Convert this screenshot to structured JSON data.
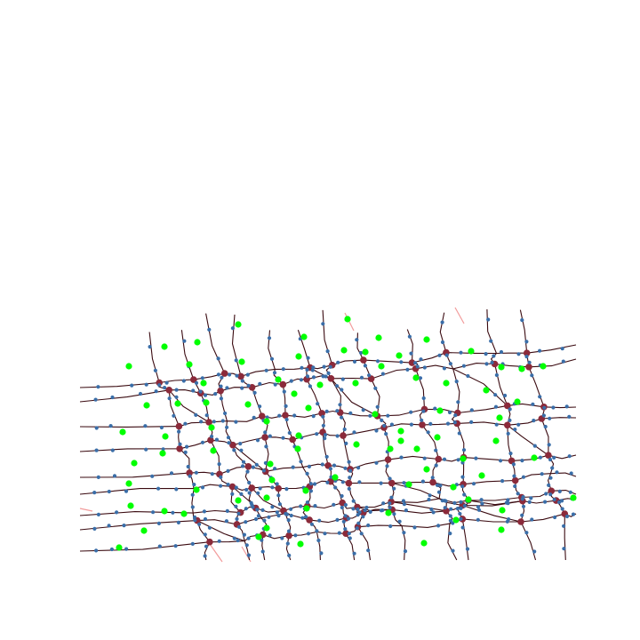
{
  "map": {
    "background": "#ffffff",
    "colors": {
      "road_edge": "#3a0a10",
      "ghost_edge": "#f08a8a",
      "junction": "#8b2a3a",
      "shape_point": "#3a6ea8",
      "poi": "#00ff00"
    },
    "layers": [
      "ghost_edges",
      "road_edges",
      "junctions",
      "shape_points",
      "pois"
    ],
    "labels": []
  }
}
